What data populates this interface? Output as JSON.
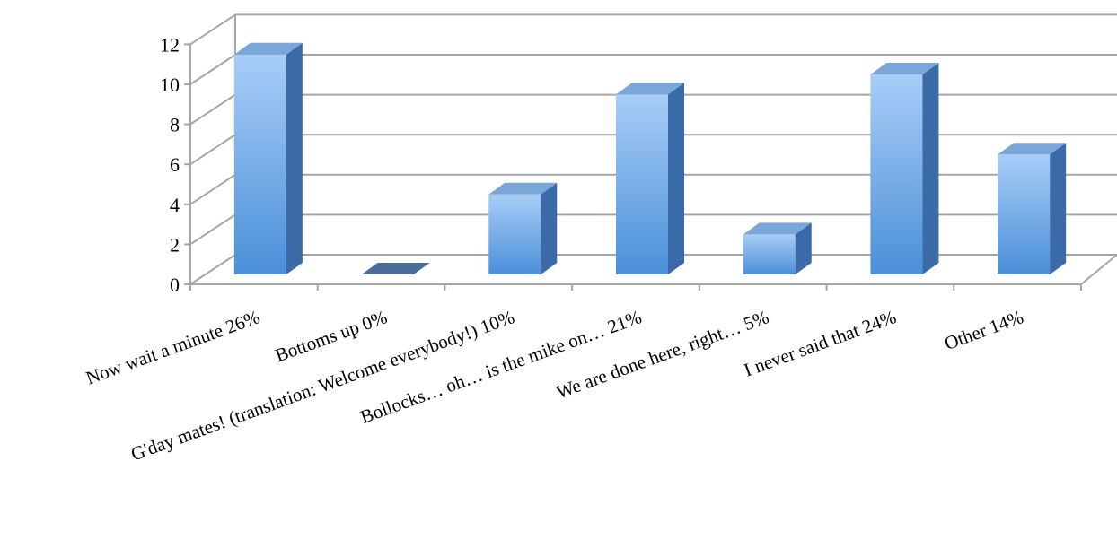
{
  "chart_data": {
    "type": "bar",
    "style": "3d-column",
    "categories": [
      "Now wait a minute 26%",
      "Bottoms up 0%",
      "G'day mates! (translation: Welcome everybody!) 10%",
      "Bollocks… oh… is the mike on… 21%",
      "We are done here, right… 5%",
      "I never said that 24%",
      "Other 14%"
    ],
    "values": [
      11,
      0,
      4,
      9,
      2,
      10,
      6
    ],
    "ylim": [
      0,
      12
    ],
    "yticks": [
      "0",
      "2",
      "4",
      "6",
      "8",
      "10",
      "12"
    ],
    "grid": true,
    "legend": "none",
    "colors": {
      "bar_front_top": "#a8cdf7",
      "bar_front_bottom": "#4a8fd9",
      "bar_side": "#3a6aa8",
      "bar_top": "#7aa6d8",
      "grid": "#a6a6a6"
    }
  }
}
